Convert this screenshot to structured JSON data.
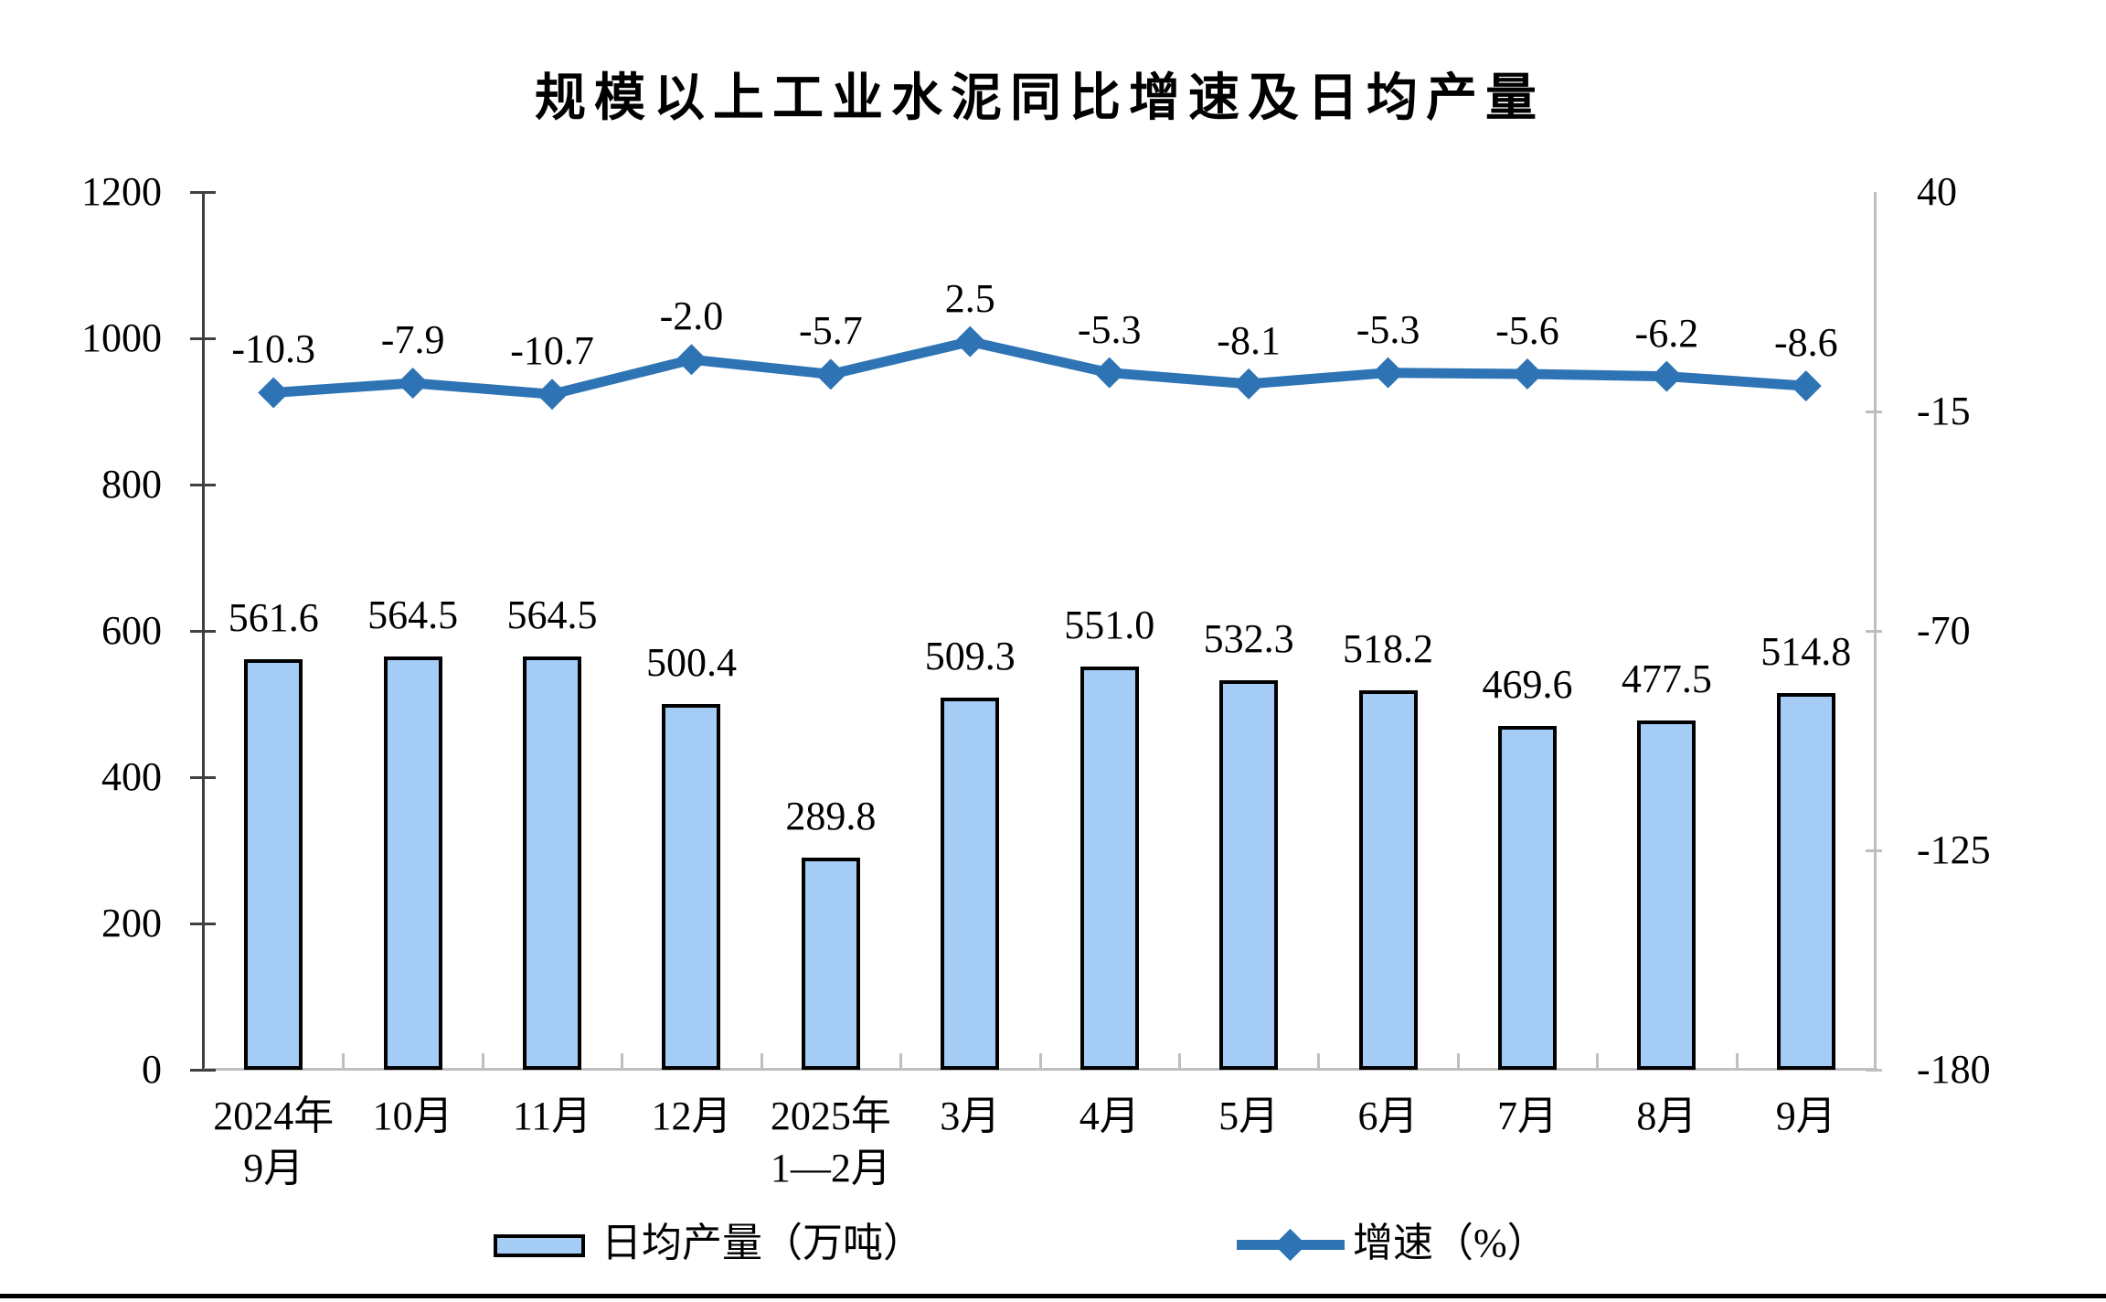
{
  "title": "规模以上工业水泥同比增速及日均产量",
  "legend": {
    "bar_label": "日均产量（万吨）",
    "line_label": "增速（%）"
  },
  "colors": {
    "bar_fill": "#A4CCF4",
    "bar_border": "#000000",
    "line": "#2E74B5",
    "axis_dark": "#404040",
    "axis_light": "#BFBFBF",
    "text": "#000000"
  },
  "axes": {
    "left_ticks": [
      "1200",
      "1000",
      "800",
      "600",
      "400",
      "200",
      "0"
    ],
    "right_ticks": [
      "40",
      "-15",
      "-70",
      "-125",
      "-180"
    ]
  },
  "chart_data": {
    "type": "combo",
    "title": "规模以上工业水泥同比增速及日均产量",
    "categories": [
      "2024年\n9月",
      "10月",
      "11月",
      "12月",
      "2025年\n1—2月",
      "3月",
      "4月",
      "5月",
      "6月",
      "7月",
      "8月",
      "9月"
    ],
    "series": [
      {
        "name": "日均产量（万吨）",
        "type": "bar",
        "axis": "left",
        "values": [
          561.6,
          564.5,
          564.5,
          500.4,
          289.8,
          509.3,
          551.0,
          532.3,
          518.2,
          469.6,
          477.5,
          514.8
        ],
        "labels": [
          "561.6",
          "564.5",
          "564.5",
          "500.4",
          "289.8",
          "509.3",
          "551.0",
          "532.3",
          "518.2",
          "469.6",
          "477.5",
          "514.8"
        ]
      },
      {
        "name": "增速（%）",
        "type": "line",
        "axis": "right",
        "values": [
          -10.3,
          -7.9,
          -10.7,
          -2.0,
          -5.7,
          2.5,
          -5.3,
          -8.1,
          -5.3,
          -5.6,
          -6.2,
          -8.6
        ],
        "labels": [
          "-10.3",
          "-7.9",
          "-10.7",
          "-2.0",
          "-5.7",
          "2.5",
          "-5.3",
          "-8.1",
          "-5.3",
          "-5.6",
          "-6.2",
          "-8.6"
        ]
      }
    ],
    "left_axis": {
      "min": 0,
      "max": 1200,
      "step": 200
    },
    "right_axis": {
      "min": -180,
      "max": 40,
      "step": 55
    },
    "grid": false,
    "legend_position": "bottom"
  }
}
